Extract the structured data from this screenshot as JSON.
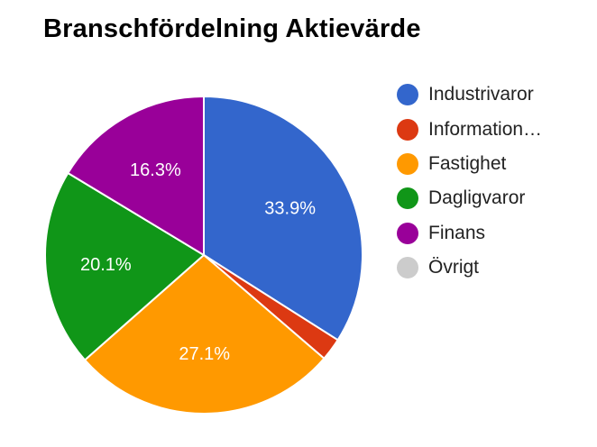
{
  "chart_data": {
    "type": "pie",
    "title": "Branschfördelning Aktievärde",
    "slices": [
      {
        "label": "Industrivaror",
        "value": 33.9,
        "display": "33.9%",
        "color": "#3366cc",
        "legend_label": "Industrivaror"
      },
      {
        "label": "Information…",
        "value": 2.3,
        "display": "",
        "color": "#dc3912",
        "legend_label": "Information…"
      },
      {
        "label": "Fastighet",
        "value": 27.1,
        "display": "27.1%",
        "color": "#ff9900",
        "legend_label": "Fastighet"
      },
      {
        "label": "Dagligvaror",
        "value": 20.1,
        "display": "20.1%",
        "color": "#109618",
        "legend_label": "Dagligvaror"
      },
      {
        "label": "Finans",
        "value": 16.3,
        "display": "16.3%",
        "color": "#990099",
        "legend_label": "Finans"
      },
      {
        "label": "Övrigt",
        "value": 0,
        "display": "",
        "color": "#cccccc",
        "legend_label": "Övrigt"
      }
    ],
    "legend_position": "right"
  }
}
